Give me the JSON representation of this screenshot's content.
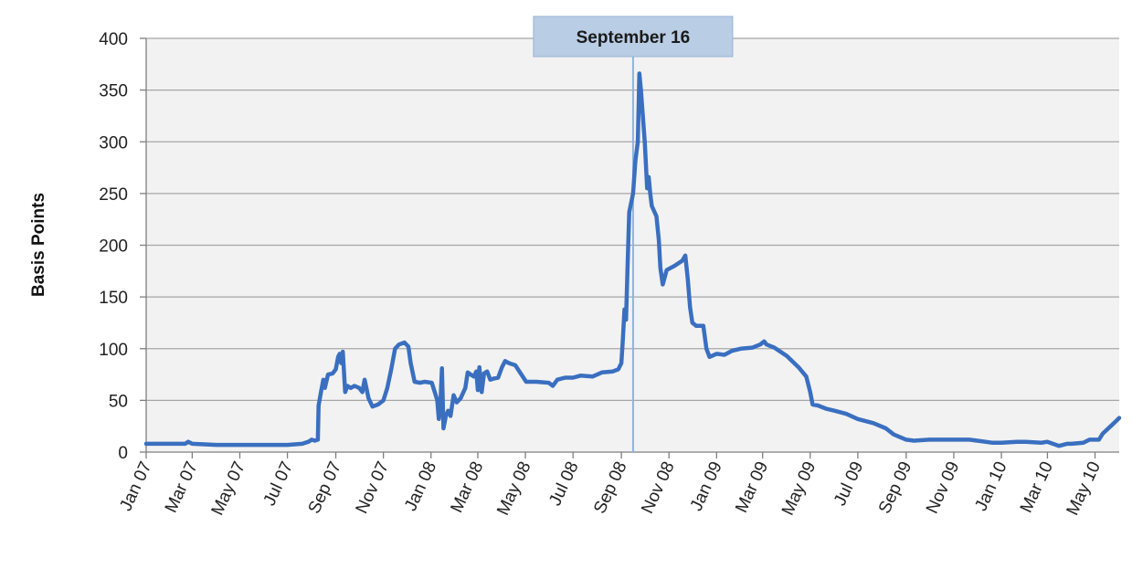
{
  "chart_data": {
    "type": "line",
    "title": "",
    "xlabel": "",
    "ylabel": "Basis Points",
    "ylim": [
      0,
      400
    ],
    "xlim": [
      "2007-01-01",
      "2010-06-01"
    ],
    "yticks": [
      0,
      50,
      100,
      150,
      200,
      250,
      300,
      350,
      400
    ],
    "xticks": [
      {
        "date": "2007-01-01",
        "label": "Jan 07"
      },
      {
        "date": "2007-03-01",
        "label": "Mar 07"
      },
      {
        "date": "2007-05-01",
        "label": "May 07"
      },
      {
        "date": "2007-07-01",
        "label": "Jul 07"
      },
      {
        "date": "2007-09-01",
        "label": "Sep 07"
      },
      {
        "date": "2007-11-01",
        "label": "Nov 07"
      },
      {
        "date": "2008-01-01",
        "label": "Jan 08"
      },
      {
        "date": "2008-03-01",
        "label": "Mar 08"
      },
      {
        "date": "2008-05-01",
        "label": "May 08"
      },
      {
        "date": "2008-07-01",
        "label": "Jul 08"
      },
      {
        "date": "2008-09-01",
        "label": "Sep 08"
      },
      {
        "date": "2008-11-01",
        "label": "Nov 08"
      },
      {
        "date": "2009-01-01",
        "label": "Jan 09"
      },
      {
        "date": "2009-03-01",
        "label": "Mar 09"
      },
      {
        "date": "2009-05-01",
        "label": "May 09"
      },
      {
        "date": "2009-07-01",
        "label": "Jul 09"
      },
      {
        "date": "2009-09-01",
        "label": "Sep 09"
      },
      {
        "date": "2009-11-01",
        "label": "Nov 09"
      },
      {
        "date": "2010-01-01",
        "label": "Jan 10"
      },
      {
        "date": "2010-03-01",
        "label": "Mar 10"
      },
      {
        "date": "2010-05-01",
        "label": "May 10"
      }
    ],
    "grid": {
      "horizontal": true,
      "vertical": false
    },
    "legend": "none",
    "colors": {
      "line": "#3a6fc0",
      "marker_line": "#8db3e2",
      "plot_background": "#f2f2f2",
      "grid": "#a6a6a6",
      "annotation_fill": "#b9cde5",
      "annotation_border": "#95b3d7"
    },
    "annotations": [
      {
        "label": "September 16",
        "date": "2008-09-16",
        "type": "vertical-line"
      }
    ],
    "series": [
      {
        "points": [
          [
            "2007-01-01",
            8
          ],
          [
            "2007-02-01",
            8
          ],
          [
            "2007-02-20",
            8
          ],
          [
            "2007-02-24",
            10
          ],
          [
            "2007-03-01",
            8
          ],
          [
            "2007-04-01",
            7
          ],
          [
            "2007-05-01",
            7
          ],
          [
            "2007-06-01",
            7
          ],
          [
            "2007-07-01",
            7
          ],
          [
            "2007-07-20",
            8
          ],
          [
            "2007-07-28",
            10
          ],
          [
            "2007-08-01",
            12
          ],
          [
            "2007-08-05",
            11
          ],
          [
            "2007-08-09",
            12
          ],
          [
            "2007-08-10",
            45
          ],
          [
            "2007-08-13",
            58
          ],
          [
            "2007-08-16",
            70
          ],
          [
            "2007-08-18",
            62
          ],
          [
            "2007-08-22",
            75
          ],
          [
            "2007-08-28",
            76
          ],
          [
            "2007-09-01",
            80
          ],
          [
            "2007-09-04",
            92
          ],
          [
            "2007-09-06",
            95
          ],
          [
            "2007-09-08",
            86
          ],
          [
            "2007-09-10",
            97
          ],
          [
            "2007-09-13",
            58
          ],
          [
            "2007-09-16",
            64
          ],
          [
            "2007-09-20",
            62
          ],
          [
            "2007-09-25",
            64
          ],
          [
            "2007-10-01",
            62
          ],
          [
            "2007-10-05",
            58
          ],
          [
            "2007-10-08",
            70
          ],
          [
            "2007-10-13",
            52
          ],
          [
            "2007-10-18",
            44
          ],
          [
            "2007-10-25",
            46
          ],
          [
            "2007-11-01",
            50
          ],
          [
            "2007-11-06",
            62
          ],
          [
            "2007-11-11",
            80
          ],
          [
            "2007-11-16",
            100
          ],
          [
            "2007-11-21",
            104
          ],
          [
            "2007-11-28",
            106
          ],
          [
            "2007-12-03",
            102
          ],
          [
            "2007-12-06",
            86
          ],
          [
            "2007-12-11",
            68
          ],
          [
            "2007-12-18",
            67
          ],
          [
            "2007-12-24",
            68
          ],
          [
            "2008-01-02",
            67
          ],
          [
            "2008-01-07",
            55
          ],
          [
            "2008-01-09",
            50
          ],
          [
            "2008-01-11",
            32
          ],
          [
            "2008-01-13",
            46
          ],
          [
            "2008-01-15",
            81
          ],
          [
            "2008-01-17",
            23
          ],
          [
            "2008-01-20",
            35
          ],
          [
            "2008-01-23",
            40
          ],
          [
            "2008-01-26",
            35
          ],
          [
            "2008-01-30",
            55
          ],
          [
            "2008-02-03",
            48
          ],
          [
            "2008-02-08",
            52
          ],
          [
            "2008-02-14",
            62
          ],
          [
            "2008-02-17",
            77
          ],
          [
            "2008-02-21",
            75
          ],
          [
            "2008-02-25",
            73
          ],
          [
            "2008-02-28",
            78
          ],
          [
            "2008-03-01",
            60
          ],
          [
            "2008-03-03",
            82
          ],
          [
            "2008-03-06",
            58
          ],
          [
            "2008-03-09",
            76
          ],
          [
            "2008-03-13",
            78
          ],
          [
            "2008-03-17",
            70
          ],
          [
            "2008-03-21",
            71
          ],
          [
            "2008-03-27",
            72
          ],
          [
            "2008-04-01",
            82
          ],
          [
            "2008-04-05",
            88
          ],
          [
            "2008-04-10",
            86
          ],
          [
            "2008-04-18",
            84
          ],
          [
            "2008-04-25",
            76
          ],
          [
            "2008-05-02",
            68
          ],
          [
            "2008-05-15",
            68
          ],
          [
            "2008-05-31",
            67
          ],
          [
            "2008-06-05",
            64
          ],
          [
            "2008-06-11",
            70
          ],
          [
            "2008-06-21",
            72
          ],
          [
            "2008-07-01",
            72
          ],
          [
            "2008-07-11",
            74
          ],
          [
            "2008-07-26",
            73
          ],
          [
            "2008-08-07",
            77
          ],
          [
            "2008-08-21",
            78
          ],
          [
            "2008-08-28",
            80
          ],
          [
            "2008-09-01",
            86
          ],
          [
            "2008-09-03",
            110
          ],
          [
            "2008-09-05",
            138
          ],
          [
            "2008-09-07",
            128
          ],
          [
            "2008-09-09",
            180
          ],
          [
            "2008-09-11",
            232
          ],
          [
            "2008-09-16",
            250
          ],
          [
            "2008-09-19",
            282
          ],
          [
            "2008-09-22",
            300
          ],
          [
            "2008-09-24",
            366
          ],
          [
            "2008-09-26",
            350
          ],
          [
            "2008-10-01",
            300
          ],
          [
            "2008-10-04",
            255
          ],
          [
            "2008-10-06",
            266
          ],
          [
            "2008-10-08",
            250
          ],
          [
            "2008-10-10",
            238
          ],
          [
            "2008-10-16",
            228
          ],
          [
            "2008-10-19",
            205
          ],
          [
            "2008-10-21",
            178
          ],
          [
            "2008-10-24",
            162
          ],
          [
            "2008-10-29",
            176
          ],
          [
            "2008-11-08",
            180
          ],
          [
            "2008-11-18",
            185
          ],
          [
            "2008-11-22",
            190
          ],
          [
            "2008-11-25",
            168
          ],
          [
            "2008-11-28",
            140
          ],
          [
            "2008-12-01",
            125
          ],
          [
            "2008-12-06",
            122
          ],
          [
            "2008-12-15",
            122
          ],
          [
            "2008-12-19",
            100
          ],
          [
            "2008-12-23",
            92
          ],
          [
            "2009-01-01",
            95
          ],
          [
            "2009-01-11",
            94
          ],
          [
            "2009-01-21",
            98
          ],
          [
            "2009-02-01",
            100
          ],
          [
            "2009-02-16",
            101
          ],
          [
            "2009-02-26",
            104
          ],
          [
            "2009-03-03",
            107
          ],
          [
            "2009-03-06",
            104
          ],
          [
            "2009-03-16",
            101
          ],
          [
            "2009-04-01",
            93
          ],
          [
            "2009-04-16",
            82
          ],
          [
            "2009-04-26",
            73
          ],
          [
            "2009-05-01",
            58
          ],
          [
            "2009-05-04",
            46
          ],
          [
            "2009-05-11",
            45
          ],
          [
            "2009-05-21",
            42
          ],
          [
            "2009-06-01",
            40
          ],
          [
            "2009-06-16",
            37
          ],
          [
            "2009-07-01",
            32
          ],
          [
            "2009-07-21",
            28
          ],
          [
            "2009-08-06",
            23
          ],
          [
            "2009-08-16",
            17
          ],
          [
            "2009-09-01",
            12
          ],
          [
            "2009-09-11",
            11
          ],
          [
            "2009-10-01",
            12
          ],
          [
            "2009-11-01",
            12
          ],
          [
            "2009-11-21",
            12
          ],
          [
            "2009-12-01",
            11
          ],
          [
            "2009-12-21",
            9
          ],
          [
            "2010-01-01",
            9
          ],
          [
            "2010-01-21",
            10
          ],
          [
            "2010-02-01",
            10
          ],
          [
            "2010-02-21",
            9
          ],
          [
            "2010-03-01",
            10
          ],
          [
            "2010-03-16",
            6
          ],
          [
            "2010-03-26",
            8
          ],
          [
            "2010-04-01",
            8
          ],
          [
            "2010-04-16",
            9
          ],
          [
            "2010-04-24",
            12
          ],
          [
            "2010-05-06",
            12
          ],
          [
            "2010-05-11",
            18
          ],
          [
            "2010-05-21",
            25
          ],
          [
            "2010-05-28",
            30
          ],
          [
            "2010-06-01",
            33
          ]
        ]
      }
    ]
  }
}
